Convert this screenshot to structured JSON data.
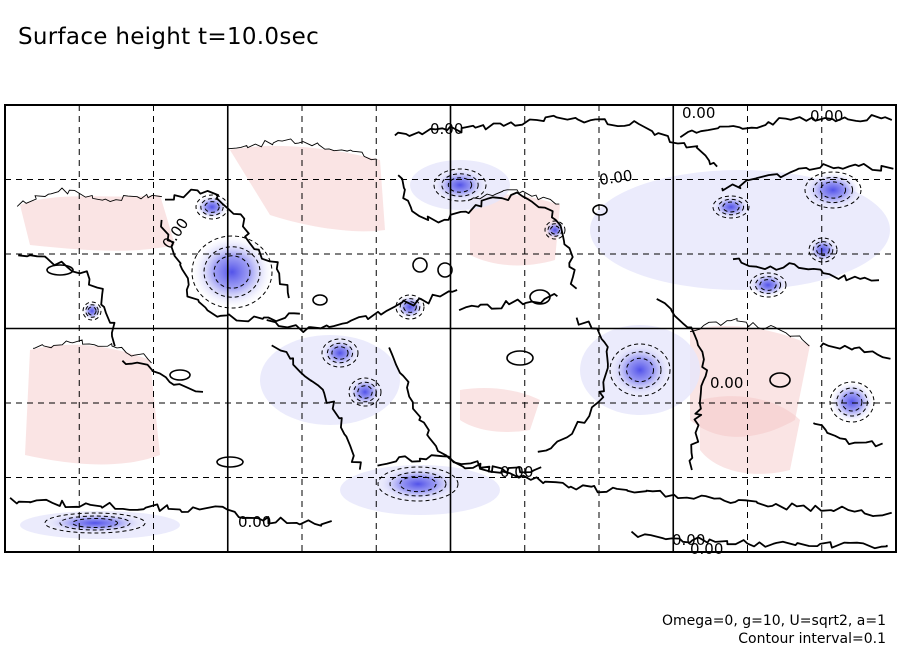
{
  "chart_data": {
    "type": "heatmap",
    "title": "Surface height t=10.0sec",
    "xlabel": "",
    "ylabel": "",
    "grid": true,
    "footnotes": [
      "Omega=0, g=10, U=sqrt2, a=1",
      "Contour interval=0.1"
    ],
    "contour_labels": [
      "0.00",
      "0.00",
      "0.00",
      "0.00",
      "0.00",
      "0.00",
      "0.00",
      "0.00",
      "0.00",
      "0.00"
    ],
    "colors": {
      "negative": "#5a5aee",
      "positive": "#f4c4c4",
      "line": "#000000"
    }
  }
}
